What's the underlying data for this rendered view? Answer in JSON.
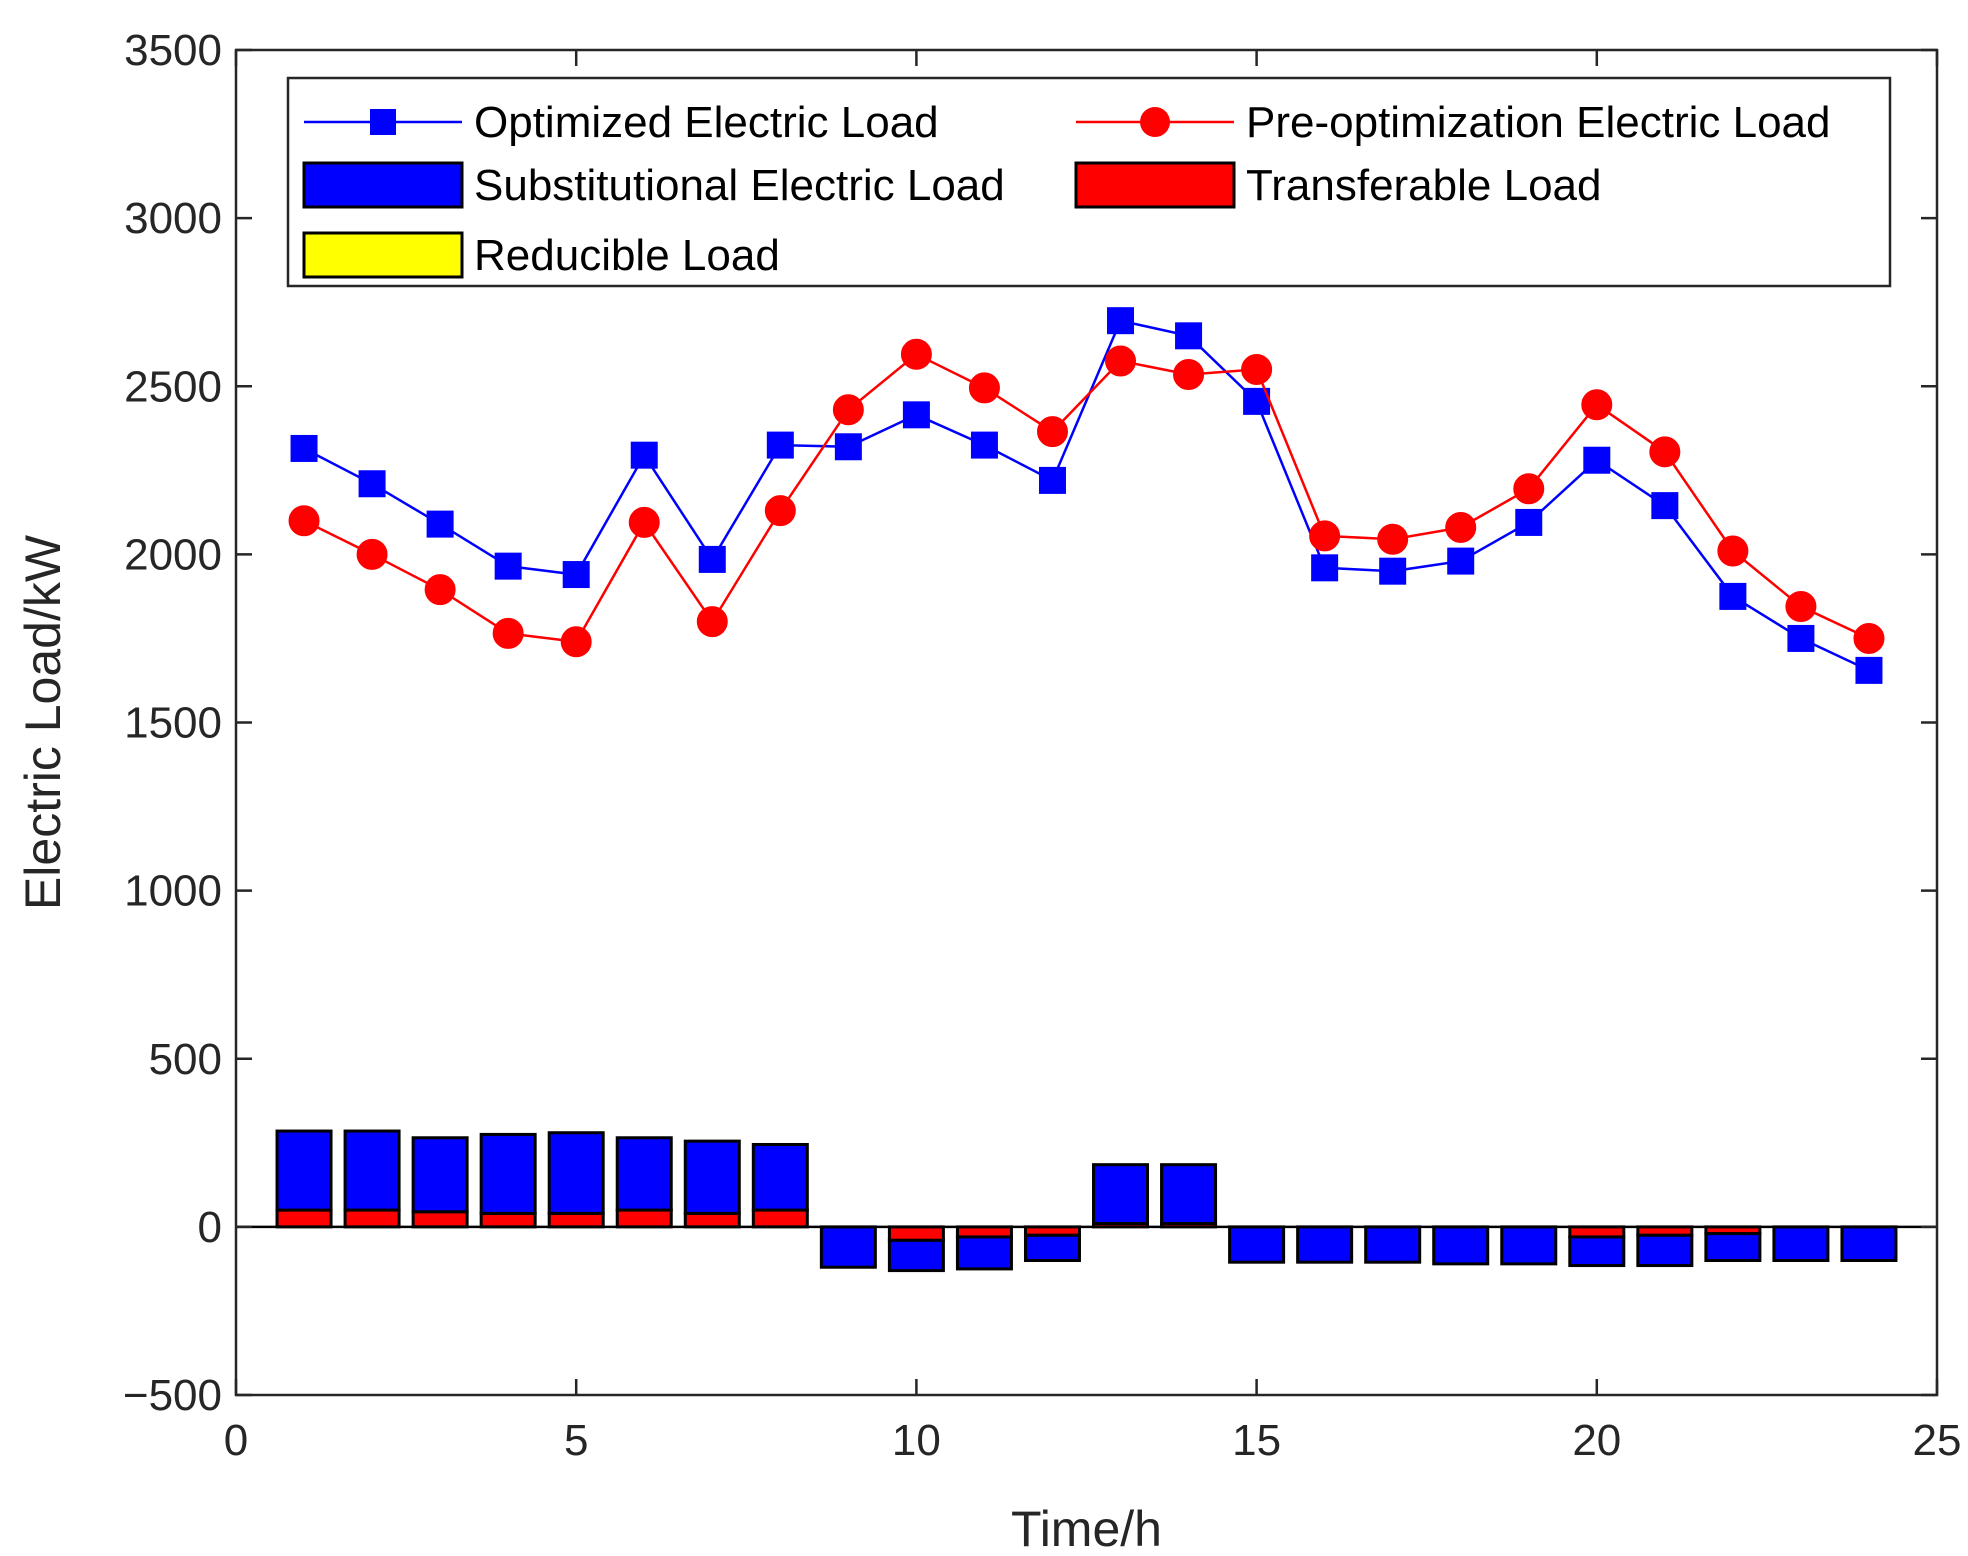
{
  "chart_data": {
    "type": "bar+line",
    "title": "",
    "xlabel": "Time/h",
    "ylabel": "Electric Load/kW",
    "xlim": [
      0,
      25
    ],
    "ylim": [
      -500,
      3500
    ],
    "x_ticks": [
      0,
      5,
      10,
      15,
      20,
      25
    ],
    "y_ticks": [
      -500,
      0,
      500,
      1000,
      1500,
      2000,
      2500,
      3000,
      3500
    ],
    "x_tick_labels": [
      "0",
      "5",
      "10",
      "15",
      "20",
      "25"
    ],
    "y_tick_labels": [
      "−500",
      "0",
      "500",
      "1000",
      "1500",
      "2000",
      "2500",
      "3000",
      "3500"
    ],
    "grid": false,
    "legend_position": "top",
    "x": [
      1,
      2,
      3,
      4,
      5,
      6,
      7,
      8,
      9,
      10,
      11,
      12,
      13,
      14,
      15,
      16,
      17,
      18,
      19,
      20,
      21,
      22,
      23,
      24
    ],
    "lines": [
      {
        "name": "Optimized Electric Load",
        "color": "#0000ff",
        "marker": "square",
        "values": [
          2315,
          2210,
          2090,
          1965,
          1940,
          2295,
          1985,
          2325,
          2320,
          2415,
          2325,
          2220,
          2695,
          2650,
          2455,
          1960,
          1950,
          1980,
          2095,
          2280,
          2145,
          1875,
          1750,
          1655
        ]
      },
      {
        "name": "Pre-optimization Electric Load",
        "color": "#ff0000",
        "marker": "circle",
        "values": [
          2100,
          2000,
          1895,
          1765,
          1740,
          2095,
          1800,
          2130,
          2430,
          2595,
          2495,
          2365,
          2575,
          2535,
          2550,
          2055,
          2045,
          2080,
          2195,
          2445,
          2305,
          2010,
          1845,
          1750
        ]
      }
    ],
    "stacked_bars": [
      {
        "name": "Transferable Load",
        "color": "#ff0000",
        "values": [
          50,
          50,
          45,
          40,
          40,
          50,
          40,
          50,
          0,
          -40,
          -30,
          -25,
          10,
          10,
          0,
          0,
          0,
          0,
          0,
          -30,
          -25,
          -20,
          0,
          0
        ]
      },
      {
        "name": "Substitutional Electric Load",
        "color": "#0000ff",
        "values": [
          235,
          235,
          220,
          235,
          240,
          215,
          215,
          195,
          -120,
          -90,
          -95,
          -75,
          175,
          175,
          -105,
          -105,
          -105,
          -110,
          -110,
          -85,
          -90,
          -80,
          -100,
          -100
        ]
      },
      {
        "name": "Reducible Load",
        "color": "#ffff00",
        "values": [
          0,
          0,
          0,
          0,
          0,
          0,
          0,
          0,
          0,
          0,
          0,
          0,
          0,
          0,
          0,
          0,
          0,
          0,
          0,
          0,
          0,
          0,
          0,
          0
        ]
      }
    ],
    "legend": [
      {
        "label": "Optimized Electric Load",
        "kind": "line",
        "color": "#0000ff",
        "marker": "square"
      },
      {
        "label": "Pre-optimization Electric Load",
        "kind": "line",
        "color": "#ff0000",
        "marker": "circle"
      },
      {
        "label": "Substitutional Electric Load",
        "kind": "bar",
        "color": "#0000ff"
      },
      {
        "label": "Transferable Load",
        "kind": "bar",
        "color": "#ff0000"
      },
      {
        "label": "Reducible Load",
        "kind": "bar",
        "color": "#ffff00"
      }
    ]
  }
}
